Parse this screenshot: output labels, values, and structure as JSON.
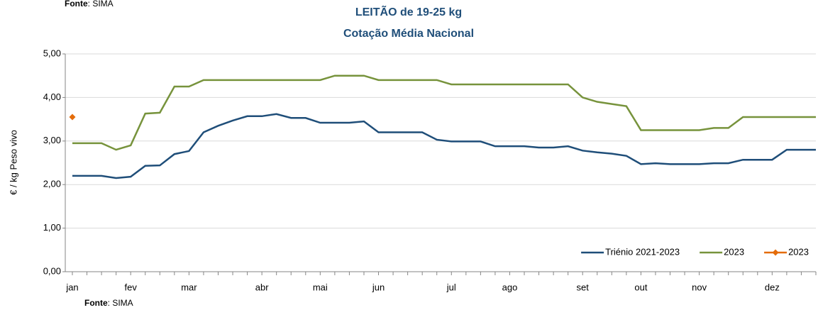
{
  "chart_data": {
    "type": "line",
    "title": [
      "LEITÃO de 19-25 kg",
      "Cotação Média Nacional"
    ],
    "y_label": "€ / kg Peso vivo",
    "sources": [
      {
        "label": "Fonte",
        "text": ": SIMA"
      },
      {
        "label": "Fonte",
        "text": ": SIMA"
      }
    ],
    "categories": [
      "jan",
      null,
      null,
      null,
      "fev",
      null,
      null,
      null,
      "mar",
      null,
      null,
      null,
      null,
      "abr",
      null,
      null,
      null,
      "mai",
      null,
      null,
      null,
      "jun",
      null,
      null,
      null,
      null,
      "jul",
      null,
      null,
      null,
      "ago",
      null,
      null,
      null,
      null,
      "set",
      null,
      null,
      null,
      "out",
      null,
      null,
      null,
      "nov",
      null,
      null,
      null,
      null,
      "dez",
      null,
      null,
      null
    ],
    "ylim": [
      0,
      5
    ],
    "yticks": [
      {
        "value": 0,
        "label": "0,00"
      },
      {
        "value": 1,
        "label": "1,00"
      },
      {
        "value": 2,
        "label": "2,00"
      },
      {
        "value": 3,
        "label": "3,00"
      },
      {
        "value": 4,
        "label": "4,00"
      },
      {
        "value": 5,
        "label": "5,00"
      }
    ],
    "grid": true,
    "legend": "lower right",
    "series": [
      {
        "name": "Triénio 2021-2023",
        "color": "#1f4e79",
        "marker": false,
        "values": [
          2.2,
          2.2,
          2.2,
          2.15,
          2.18,
          2.43,
          2.44,
          2.7,
          2.77,
          3.2,
          3.35,
          3.47,
          3.57,
          3.57,
          3.62,
          3.53,
          3.53,
          3.42,
          3.42,
          3.42,
          3.45,
          3.2,
          3.2,
          3.2,
          3.2,
          3.03,
          2.99,
          2.99,
          2.99,
          2.88,
          2.88,
          2.88,
          2.85,
          2.85,
          2.88,
          2.78,
          2.74,
          2.71,
          2.66,
          2.47,
          2.49,
          2.47,
          2.47,
          2.47,
          2.49,
          2.49,
          2.57,
          2.57,
          2.57,
          2.8,
          2.8,
          2.8
        ]
      },
      {
        "name": "2023",
        "color": "#77933c",
        "marker": false,
        "values": [
          2.95,
          2.95,
          2.95,
          2.8,
          2.9,
          3.63,
          3.65,
          4.25,
          4.25,
          4.4,
          4.4,
          4.4,
          4.4,
          4.4,
          4.4,
          4.4,
          4.4,
          4.4,
          4.5,
          4.5,
          4.5,
          4.4,
          4.4,
          4.4,
          4.4,
          4.4,
          4.3,
          4.3,
          4.3,
          4.3,
          4.3,
          4.3,
          4.3,
          4.3,
          4.3,
          4.0,
          3.9,
          3.85,
          3.8,
          3.25,
          3.25,
          3.25,
          3.25,
          3.25,
          3.3,
          3.3,
          3.55,
          3.55,
          3.55,
          3.55,
          3.55,
          3.55
        ]
      },
      {
        "name": "2023",
        "color": "#e46c0a",
        "marker": true,
        "values": [
          3.55,
          null,
          null,
          null,
          null,
          null,
          null,
          null,
          null,
          null,
          null,
          null,
          null,
          null,
          null,
          null,
          null,
          null,
          null,
          null,
          null,
          null,
          null,
          null,
          null,
          null,
          null,
          null,
          null,
          null,
          null,
          null,
          null,
          null,
          null,
          null,
          null,
          null,
          null,
          null,
          null,
          null,
          null,
          null,
          null,
          null,
          null,
          null,
          null,
          null,
          null,
          null
        ]
      }
    ]
  }
}
